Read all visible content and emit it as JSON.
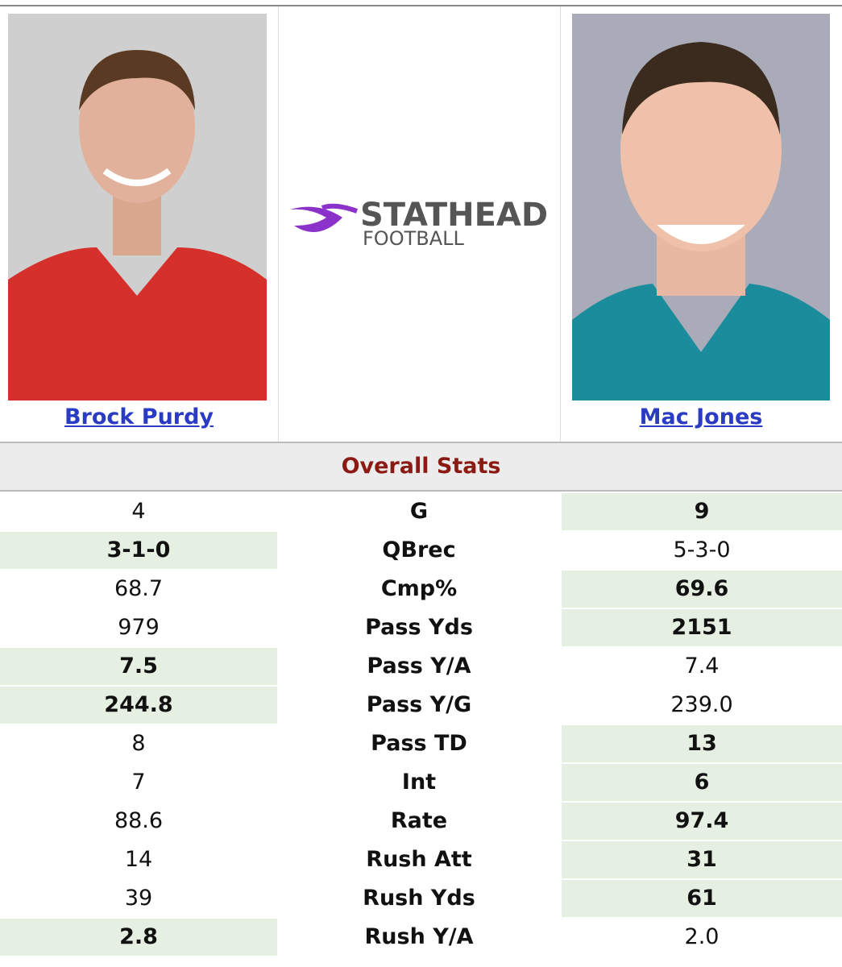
{
  "players": [
    {
      "name": "Brock Purdy"
    },
    {
      "name": "Mac Jones"
    }
  ],
  "logo": {
    "title": "STATHEAD",
    "subtitle": "FOOTBALL"
  },
  "section": {
    "title": "Overall Stats"
  },
  "table": {
    "rows": [
      {
        "stat": "G",
        "left": "4",
        "right": "9",
        "leader": "right"
      },
      {
        "stat": "QBrec",
        "left": "3-1-0",
        "right": "5-3-0",
        "leader": "left"
      },
      {
        "stat": "Cmp%",
        "left": "68.7",
        "right": "69.6",
        "leader": "right"
      },
      {
        "stat": "Pass Yds",
        "left": "979",
        "right": "2151",
        "leader": "right"
      },
      {
        "stat": "Pass Y/A",
        "left": "7.5",
        "right": "7.4",
        "leader": "left"
      },
      {
        "stat": "Pass Y/G",
        "left": "244.8",
        "right": "239.0",
        "leader": "left"
      },
      {
        "stat": "Pass TD",
        "left": "8",
        "right": "13",
        "leader": "right"
      },
      {
        "stat": "Int",
        "left": "7",
        "right": "6",
        "leader": "right"
      },
      {
        "stat": "Rate",
        "left": "88.6",
        "right": "97.4",
        "leader": "right"
      },
      {
        "stat": "Rush Att",
        "left": "14",
        "right": "31",
        "leader": "right"
      },
      {
        "stat": "Rush Yds",
        "left": "39",
        "right": "61",
        "leader": "right"
      },
      {
        "stat": "Rush Y/A",
        "left": "2.8",
        "right": "2.0",
        "leader": "left"
      }
    ]
  }
}
